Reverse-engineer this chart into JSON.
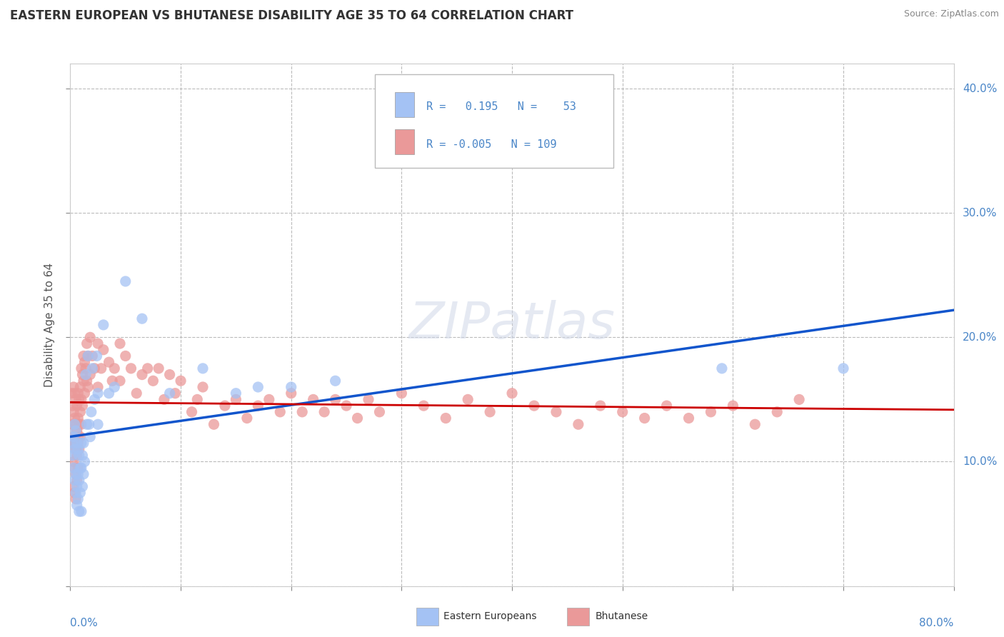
{
  "title": "EASTERN EUROPEAN VS BHUTANESE DISABILITY AGE 35 TO 64 CORRELATION CHART",
  "source": "Source: ZipAtlas.com",
  "ylabel": "Disability Age 35 to 64",
  "xlim": [
    0.0,
    0.8
  ],
  "ylim": [
    0.0,
    0.42
  ],
  "yticks": [
    0.0,
    0.1,
    0.2,
    0.3,
    0.4
  ],
  "ytick_labels": [
    "",
    "10.0%",
    "20.0%",
    "30.0%",
    "40.0%"
  ],
  "blue_color": "#a4c2f4",
  "pink_color": "#ea9999",
  "blue_line_color": "#1155cc",
  "pink_line_color": "#cc0000",
  "watermark": "ZIPatlas",
  "eastern_europeans": [
    [
      0.002,
      0.115
    ],
    [
      0.002,
      0.105
    ],
    [
      0.003,
      0.12
    ],
    [
      0.003,
      0.095
    ],
    [
      0.004,
      0.13
    ],
    [
      0.004,
      0.11
    ],
    [
      0.004,
      0.085
    ],
    [
      0.005,
      0.125
    ],
    [
      0.005,
      0.09
    ],
    [
      0.005,
      0.075
    ],
    [
      0.006,
      0.115
    ],
    [
      0.006,
      0.08
    ],
    [
      0.006,
      0.065
    ],
    [
      0.007,
      0.11
    ],
    [
      0.007,
      0.09
    ],
    [
      0.007,
      0.07
    ],
    [
      0.008,
      0.105
    ],
    [
      0.008,
      0.085
    ],
    [
      0.008,
      0.06
    ],
    [
      0.009,
      0.095
    ],
    [
      0.009,
      0.075
    ],
    [
      0.01,
      0.115
    ],
    [
      0.01,
      0.095
    ],
    [
      0.01,
      0.06
    ],
    [
      0.011,
      0.105
    ],
    [
      0.011,
      0.08
    ],
    [
      0.012,
      0.115
    ],
    [
      0.012,
      0.09
    ],
    [
      0.013,
      0.1
    ],
    [
      0.014,
      0.17
    ],
    [
      0.015,
      0.13
    ],
    [
      0.016,
      0.185
    ],
    [
      0.017,
      0.13
    ],
    [
      0.018,
      0.12
    ],
    [
      0.019,
      0.14
    ],
    [
      0.02,
      0.175
    ],
    [
      0.022,
      0.15
    ],
    [
      0.024,
      0.185
    ],
    [
      0.025,
      0.155
    ],
    [
      0.025,
      0.13
    ],
    [
      0.03,
      0.21
    ],
    [
      0.035,
      0.155
    ],
    [
      0.04,
      0.16
    ],
    [
      0.05,
      0.245
    ],
    [
      0.065,
      0.215
    ],
    [
      0.09,
      0.155
    ],
    [
      0.12,
      0.175
    ],
    [
      0.15,
      0.155
    ],
    [
      0.17,
      0.16
    ],
    [
      0.2,
      0.16
    ],
    [
      0.24,
      0.165
    ],
    [
      0.59,
      0.175
    ],
    [
      0.7,
      0.175
    ]
  ],
  "bhutanese": [
    [
      0.001,
      0.155
    ],
    [
      0.002,
      0.145
    ],
    [
      0.002,
      0.13
    ],
    [
      0.002,
      0.115
    ],
    [
      0.003,
      0.16
    ],
    [
      0.003,
      0.14
    ],
    [
      0.003,
      0.12
    ],
    [
      0.003,
      0.1
    ],
    [
      0.003,
      0.08
    ],
    [
      0.004,
      0.155
    ],
    [
      0.004,
      0.135
    ],
    [
      0.004,
      0.115
    ],
    [
      0.004,
      0.095
    ],
    [
      0.004,
      0.075
    ],
    [
      0.005,
      0.15
    ],
    [
      0.005,
      0.13
    ],
    [
      0.005,
      0.11
    ],
    [
      0.005,
      0.09
    ],
    [
      0.005,
      0.07
    ],
    [
      0.006,
      0.145
    ],
    [
      0.006,
      0.125
    ],
    [
      0.006,
      0.105
    ],
    [
      0.006,
      0.085
    ],
    [
      0.007,
      0.155
    ],
    [
      0.007,
      0.135
    ],
    [
      0.007,
      0.115
    ],
    [
      0.007,
      0.095
    ],
    [
      0.008,
      0.15
    ],
    [
      0.008,
      0.13
    ],
    [
      0.008,
      0.11
    ],
    [
      0.009,
      0.16
    ],
    [
      0.009,
      0.14
    ],
    [
      0.009,
      0.12
    ],
    [
      0.01,
      0.175
    ],
    [
      0.01,
      0.15
    ],
    [
      0.01,
      0.13
    ],
    [
      0.011,
      0.17
    ],
    [
      0.011,
      0.145
    ],
    [
      0.012,
      0.185
    ],
    [
      0.012,
      0.165
    ],
    [
      0.013,
      0.18
    ],
    [
      0.013,
      0.155
    ],
    [
      0.014,
      0.175
    ],
    [
      0.015,
      0.195
    ],
    [
      0.015,
      0.165
    ],
    [
      0.016,
      0.185
    ],
    [
      0.016,
      0.16
    ],
    [
      0.018,
      0.2
    ],
    [
      0.018,
      0.17
    ],
    [
      0.02,
      0.185
    ],
    [
      0.022,
      0.175
    ],
    [
      0.025,
      0.195
    ],
    [
      0.025,
      0.16
    ],
    [
      0.028,
      0.175
    ],
    [
      0.03,
      0.19
    ],
    [
      0.035,
      0.18
    ],
    [
      0.038,
      0.165
    ],
    [
      0.04,
      0.175
    ],
    [
      0.045,
      0.195
    ],
    [
      0.045,
      0.165
    ],
    [
      0.05,
      0.185
    ],
    [
      0.055,
      0.175
    ],
    [
      0.06,
      0.155
    ],
    [
      0.065,
      0.17
    ],
    [
      0.07,
      0.175
    ],
    [
      0.075,
      0.165
    ],
    [
      0.08,
      0.175
    ],
    [
      0.085,
      0.15
    ],
    [
      0.09,
      0.17
    ],
    [
      0.095,
      0.155
    ],
    [
      0.1,
      0.165
    ],
    [
      0.11,
      0.14
    ],
    [
      0.115,
      0.15
    ],
    [
      0.12,
      0.16
    ],
    [
      0.13,
      0.13
    ],
    [
      0.14,
      0.145
    ],
    [
      0.15,
      0.15
    ],
    [
      0.16,
      0.135
    ],
    [
      0.17,
      0.145
    ],
    [
      0.18,
      0.15
    ],
    [
      0.19,
      0.14
    ],
    [
      0.2,
      0.155
    ],
    [
      0.21,
      0.14
    ],
    [
      0.22,
      0.15
    ],
    [
      0.23,
      0.14
    ],
    [
      0.24,
      0.15
    ],
    [
      0.25,
      0.145
    ],
    [
      0.26,
      0.135
    ],
    [
      0.27,
      0.15
    ],
    [
      0.28,
      0.14
    ],
    [
      0.3,
      0.155
    ],
    [
      0.32,
      0.145
    ],
    [
      0.34,
      0.135
    ],
    [
      0.36,
      0.15
    ],
    [
      0.38,
      0.14
    ],
    [
      0.4,
      0.155
    ],
    [
      0.42,
      0.145
    ],
    [
      0.44,
      0.14
    ],
    [
      0.46,
      0.13
    ],
    [
      0.48,
      0.145
    ],
    [
      0.5,
      0.14
    ],
    [
      0.52,
      0.135
    ],
    [
      0.54,
      0.145
    ],
    [
      0.56,
      0.135
    ],
    [
      0.58,
      0.14
    ],
    [
      0.6,
      0.145
    ],
    [
      0.62,
      0.13
    ],
    [
      0.64,
      0.14
    ],
    [
      0.66,
      0.15
    ]
  ]
}
